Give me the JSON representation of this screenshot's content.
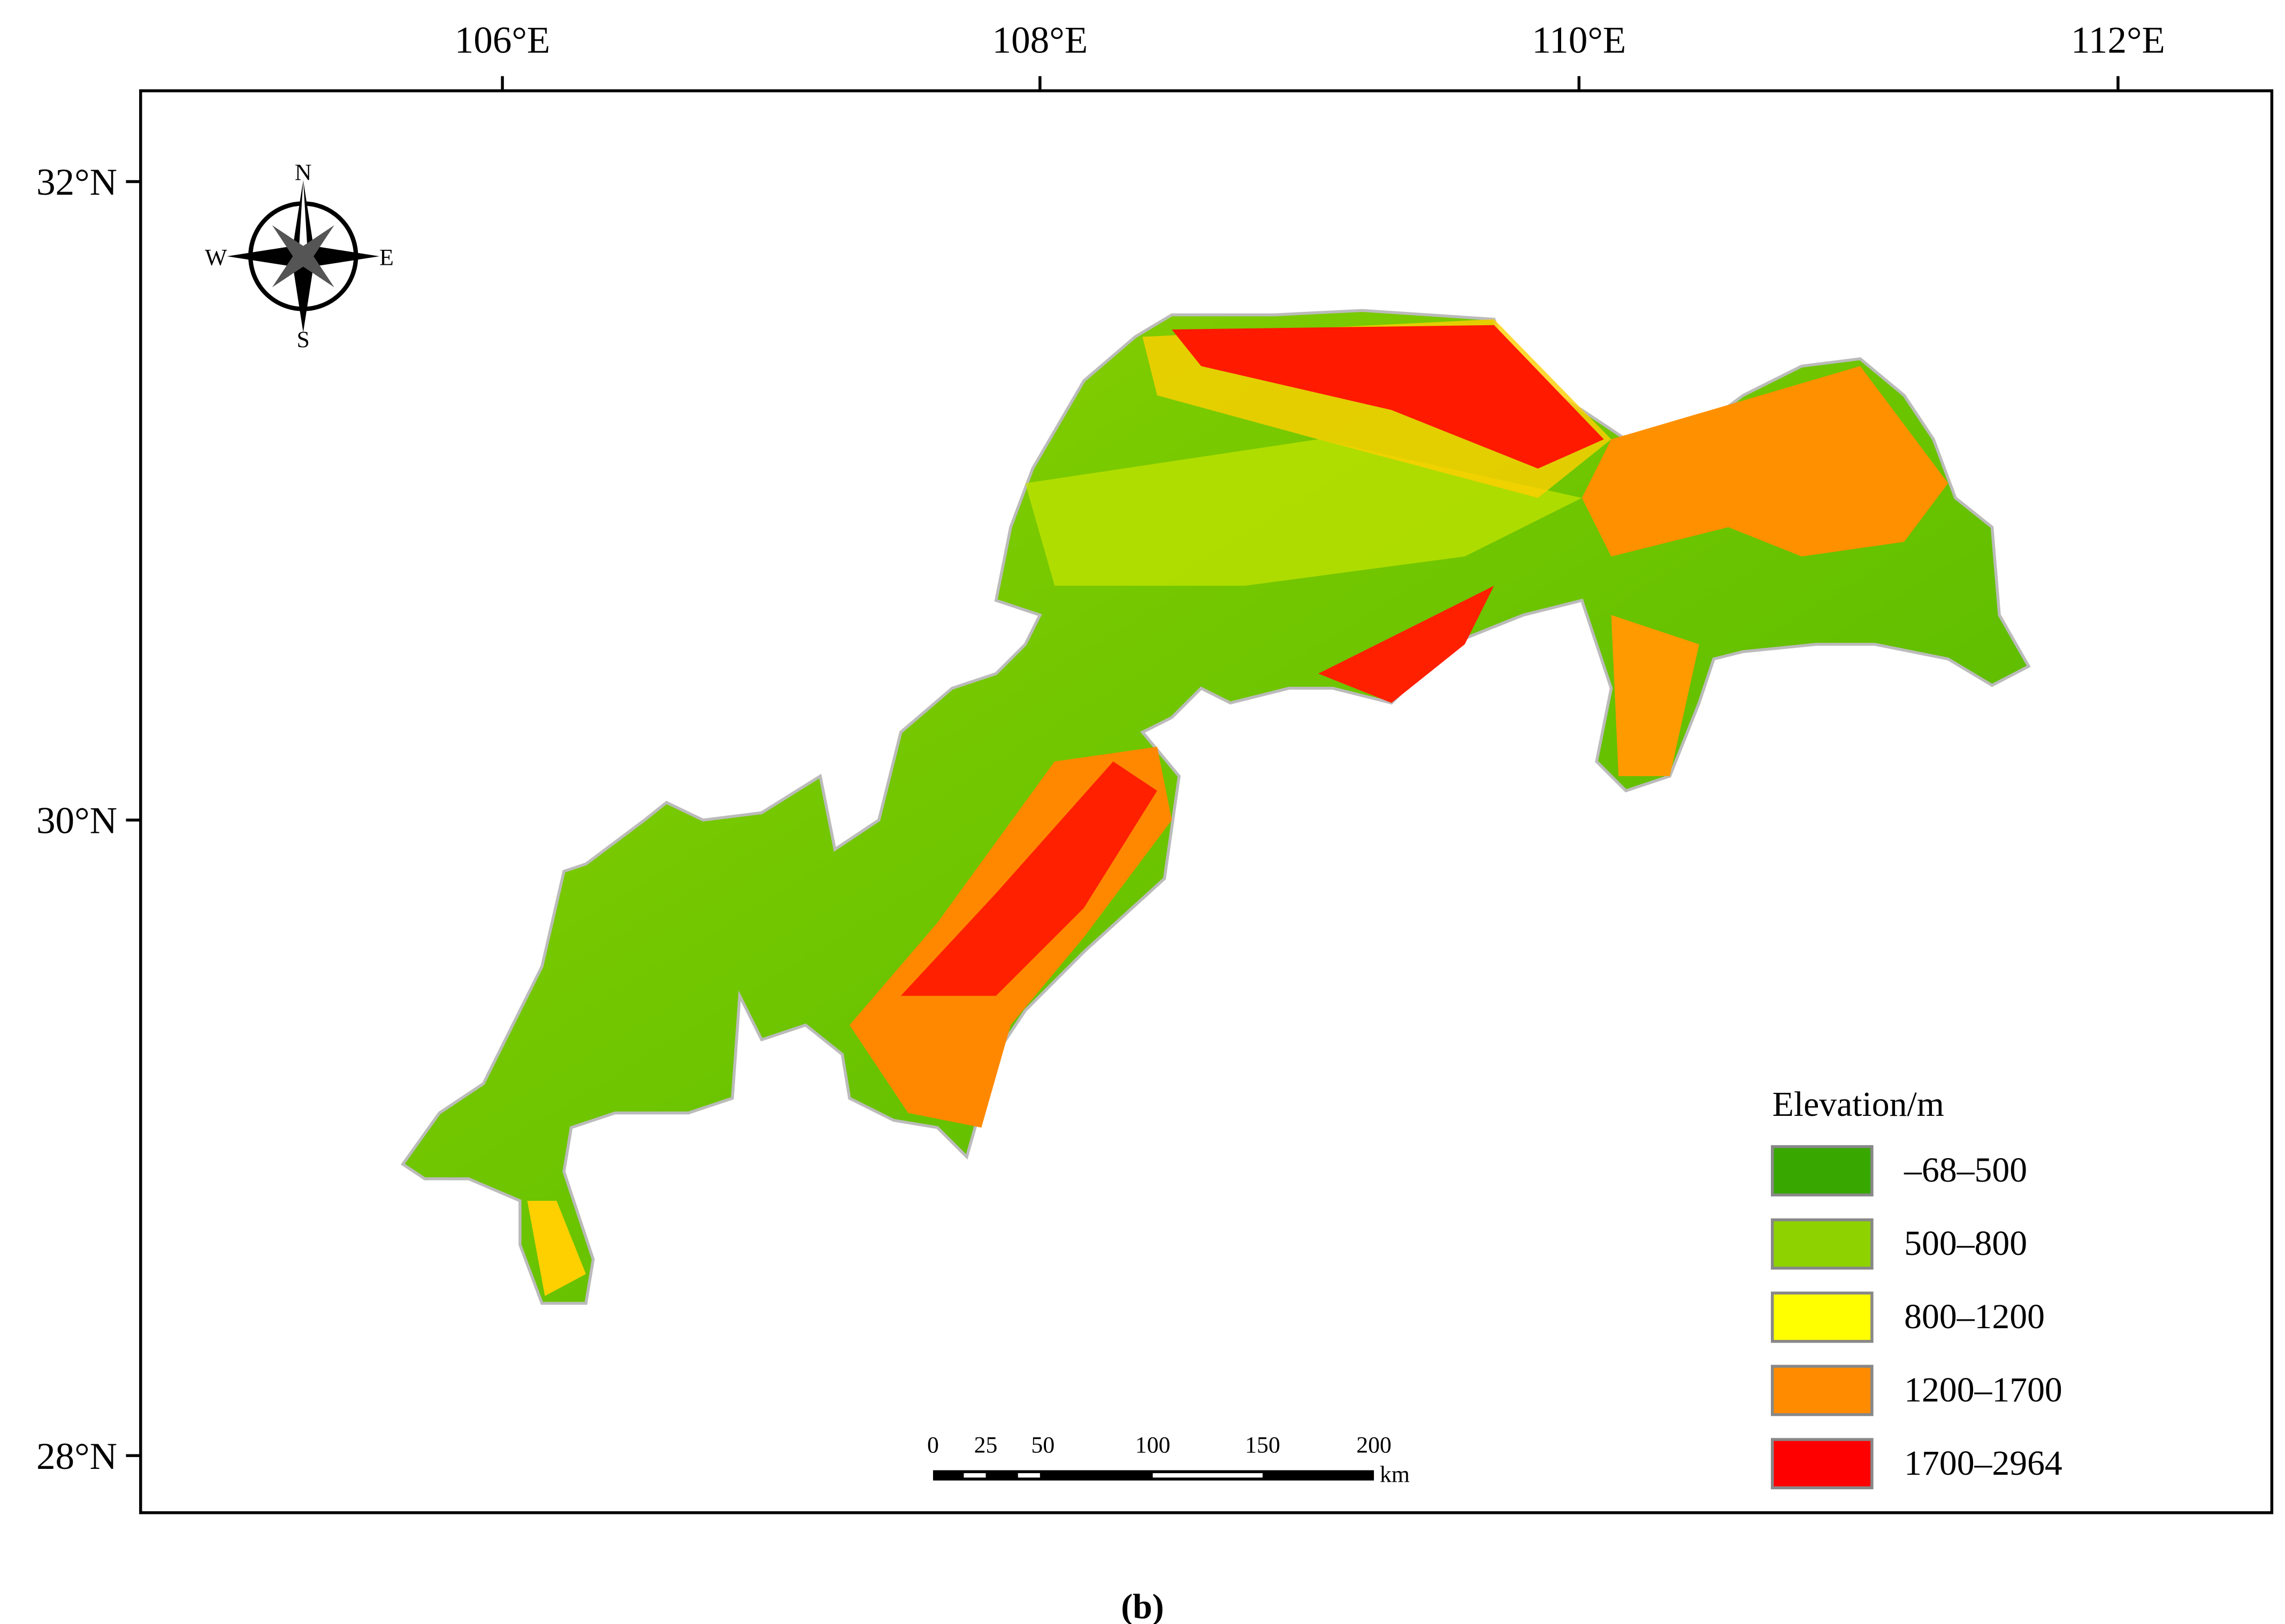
{
  "map": {
    "lon_labels": [
      "106°E",
      "108°E",
      "110°E",
      "112°E"
    ],
    "lat_labels": [
      "32°N",
      "30°N",
      "28°N"
    ],
    "compass": {
      "n": "N",
      "s": "S",
      "e": "E",
      "w": "W"
    },
    "legend": {
      "title": "Elevation/m",
      "items": [
        {
          "label": "–68–500",
          "color": "#38a800"
        },
        {
          "label": "500–800",
          "color": "#8ed200"
        },
        {
          "label": "800–1200",
          "color": "#ffff00"
        },
        {
          "label": "1200–1700",
          "color": "#ff8c00"
        },
        {
          "label": "1700–2964",
          "color": "#ff0000"
        }
      ]
    },
    "scale_bar": {
      "labels": [
        "0",
        "25",
        "50",
        "100",
        "150",
        "200"
      ],
      "unit": "km"
    },
    "caption": "(b)"
  }
}
